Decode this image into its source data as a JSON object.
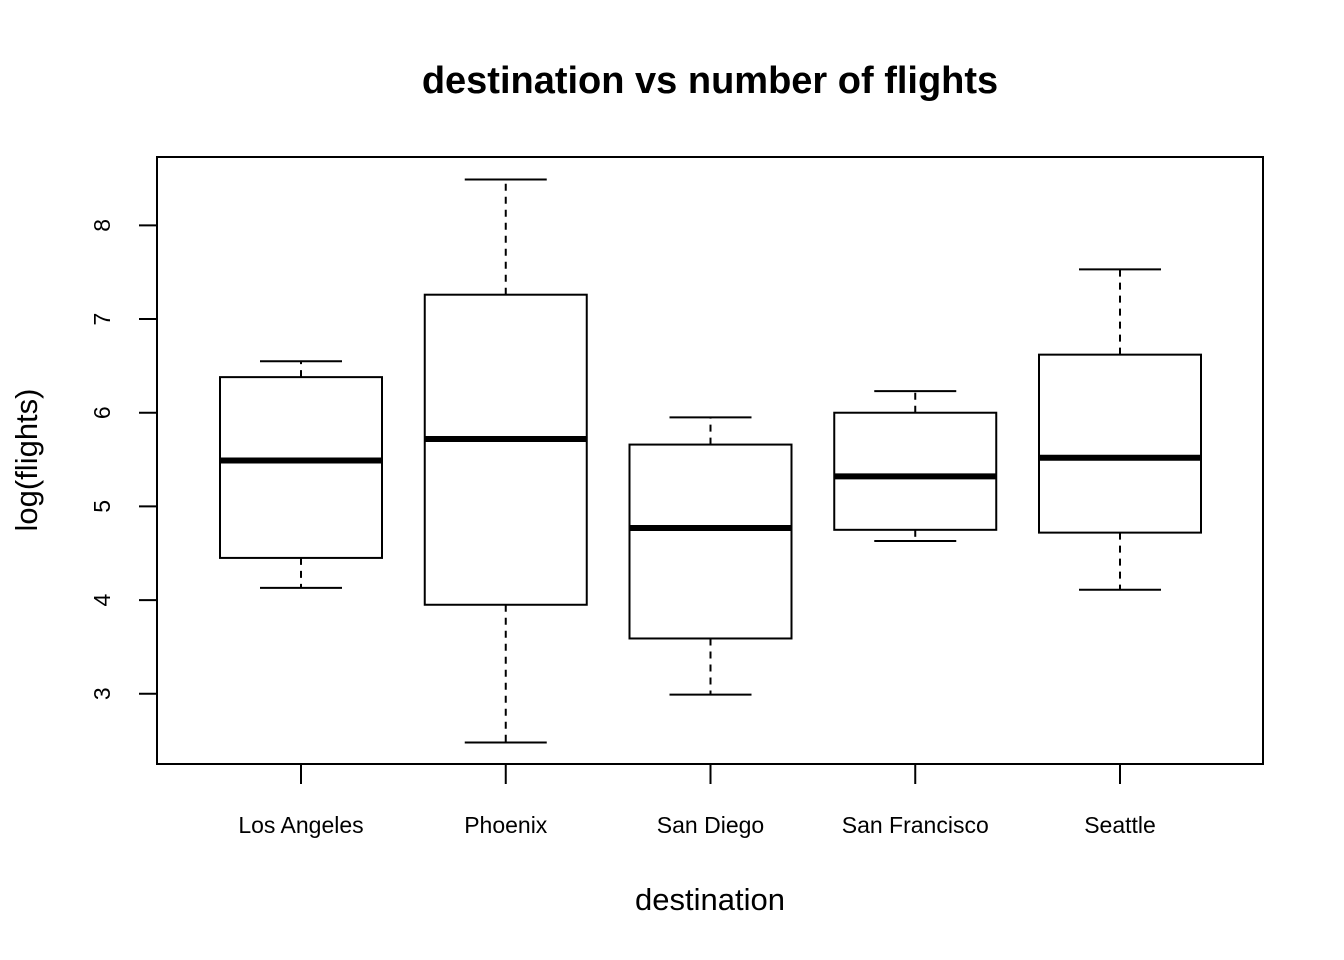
{
  "chart_data": {
    "type": "boxplot",
    "title": "destination vs number of flights",
    "xlabel": "destination",
    "ylabel": "log(flights)",
    "categories": [
      "Los Angeles",
      "Phoenix",
      "San Diego",
      "San Francisco",
      "Seattle"
    ],
    "boxes": [
      {
        "category": "Los Angeles",
        "whisker_low": 4.13,
        "q1": 4.45,
        "median": 5.49,
        "q3": 6.38,
        "whisker_high": 6.55
      },
      {
        "category": "Phoenix",
        "whisker_low": 2.48,
        "q1": 3.95,
        "median": 5.72,
        "q3": 7.26,
        "whisker_high": 8.49
      },
      {
        "category": "San Diego",
        "whisker_low": 2.99,
        "q1": 3.59,
        "median": 4.77,
        "q3": 5.66,
        "whisker_high": 5.95
      },
      {
        "category": "San Francisco",
        "whisker_low": 4.63,
        "q1": 4.75,
        "median": 5.32,
        "q3": 6.0,
        "whisker_high": 6.23
      },
      {
        "category": "Seattle",
        "whisker_low": 4.11,
        "q1": 4.72,
        "median": 5.52,
        "q3": 6.62,
        "whisker_high": 7.53
      }
    ],
    "yticks": [
      3,
      4,
      5,
      6,
      7,
      8
    ],
    "ylim": [
      2.25,
      8.73
    ],
    "grid": false,
    "colors": {
      "box_fill": "#ffffff",
      "stroke": "#000000"
    }
  }
}
